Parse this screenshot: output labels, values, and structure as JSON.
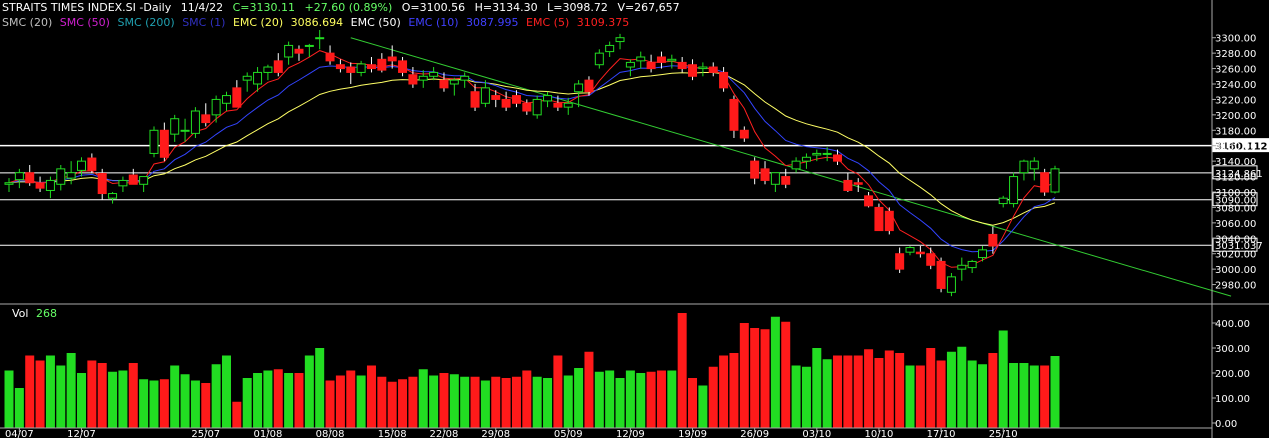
{
  "header": {
    "symbol": "STRAITS TIMES INDEX.SI -Daily",
    "date": "11/4/22",
    "close": "C=3130.11",
    "change": "+27.60 (0.89%)",
    "open": "O=3100.56",
    "high": "H=3134.30",
    "low": "L=3098.72",
    "volume": "V=267,657"
  },
  "indicators": [
    {
      "label": "SMC (20)",
      "color": "#bfbfbf"
    },
    {
      "label": "SMC (50)",
      "color": "#d020d0"
    },
    {
      "label": "SMC (200)",
      "color": "#20a0b0"
    },
    {
      "label": "SMC (1)",
      "color": "#3030c0"
    },
    {
      "label": "EMC (20)",
      "color": "#ffff60"
    },
    {
      "label": "3086.694",
      "color": "#ffff60"
    },
    {
      "label": "EMC (50)",
      "color": "#ffffff"
    },
    {
      "label": "EMC (10)",
      "color": "#4040ff"
    },
    {
      "label": "3087.995",
      "color": "#4040ff"
    },
    {
      "label": "EMC (5)",
      "color": "#ff2020"
    },
    {
      "label": "3109.375",
      "color": "#ff2020"
    }
  ],
  "colors": {
    "up": "#22dd22",
    "down": "#ff1a1a",
    "ema5": "#ff2020",
    "ema10": "#3344ff",
    "ema20": "#ffff66",
    "trendline": "#33cc33",
    "bg": "#000000"
  },
  "volume_panel": {
    "label": "Vol",
    "value": "268"
  },
  "chart_data": {
    "type": "candlestick",
    "price_axis": {
      "ticks": [
        2980,
        3000,
        3020,
        3040,
        3060,
        3080,
        3100,
        3120,
        3140,
        3160,
        3180,
        3200,
        3220,
        3240,
        3260,
        3280,
        3300
      ],
      "ylim": [
        2960,
        3310
      ]
    },
    "volume_axis": {
      "ticks": [
        "0.00",
        "100.00",
        "200.00",
        "300.00",
        "400.00"
      ],
      "ylim": [
        0,
        460
      ]
    },
    "x_labels": [
      "04/07",
      "12/07",
      "25/07",
      "01/08",
      "08/08",
      "15/08",
      "22/08",
      "29/08",
      "05/09",
      "12/09",
      "19/09",
      "26/09",
      "03/10",
      "10/10",
      "17/10",
      "25/10"
    ],
    "x_label_index": [
      1,
      7,
      19,
      25,
      31,
      37,
      42,
      47,
      54,
      60,
      66,
      72,
      78,
      84,
      90,
      96
    ],
    "levels": [
      {
        "value": 3160.112,
        "label": "3160.112",
        "style": "highlight"
      },
      {
        "value": 3124.861,
        "label": "3124.861",
        "style": "box"
      },
      {
        "value": 3090.0,
        "label": "3090.00",
        "style": "box"
      },
      {
        "value": 3031.037,
        "label": "3031.037",
        "style": "box"
      }
    ],
    "trendline": {
      "from": [
        33,
        3300
      ],
      "to": [
        118,
        2965
      ]
    },
    "candles": [
      [
        3110,
        3118,
        3100,
        3112,
        210
      ],
      [
        3116,
        3130,
        3105,
        3125,
        140
      ],
      [
        3125,
        3135,
        3108,
        3112,
        270
      ],
      [
        3112,
        3120,
        3100,
        3105,
        250
      ],
      [
        3102,
        3120,
        3092,
        3115,
        270
      ],
      [
        3110,
        3135,
        3102,
        3130,
        230
      ],
      [
        3118,
        3140,
        3110,
        3125,
        280
      ],
      [
        3128,
        3145,
        3120,
        3140,
        200
      ],
      [
        3144,
        3150,
        3125,
        3128,
        250
      ],
      [
        3124,
        3130,
        3090,
        3098,
        240
      ],
      [
        3092,
        3100,
        3085,
        3098,
        205
      ],
      [
        3108,
        3120,
        3100,
        3115,
        210
      ],
      [
        3122,
        3130,
        3110,
        3110,
        240
      ],
      [
        3110,
        3120,
        3100,
        3120,
        175
      ],
      [
        3150,
        3185,
        3145,
        3180,
        170
      ],
      [
        3180,
        3190,
        3140,
        3145,
        175
      ],
      [
        3175,
        3200,
        3165,
        3195,
        230
      ],
      [
        3180,
        3195,
        3165,
        3180,
        195
      ],
      [
        3176,
        3210,
        3170,
        3205,
        170
      ],
      [
        3200,
        3215,
        3185,
        3190,
        160
      ],
      [
        3200,
        3225,
        3190,
        3220,
        235
      ],
      [
        3215,
        3230,
        3205,
        3225,
        270
      ],
      [
        3235,
        3245,
        3210,
        3210,
        85
      ],
      [
        3245,
        3255,
        3230,
        3250,
        180
      ],
      [
        3240,
        3262,
        3230,
        3255,
        200
      ],
      [
        3255,
        3265,
        3245,
        3262,
        210
      ],
      [
        3270,
        3280,
        3250,
        3255,
        215
      ],
      [
        3275,
        3295,
        3265,
        3290,
        200
      ],
      [
        3285,
        3290,
        3270,
        3280,
        200
      ],
      [
        3290,
        3292,
        3275,
        3290,
        270
      ],
      [
        3300,
        3310,
        3285,
        3300,
        300
      ],
      [
        3280,
        3290,
        3265,
        3270,
        170
      ],
      [
        3265,
        3272,
        3255,
        3260,
        190
      ],
      [
        3262,
        3268,
        3240,
        3255,
        210
      ],
      [
        3255,
        3270,
        3250,
        3266,
        190
      ],
      [
        3265,
        3275,
        3255,
        3260,
        230
      ],
      [
        3272,
        3280,
        3255,
        3258,
        185
      ],
      [
        3275,
        3290,
        3260,
        3270,
        165
      ],
      [
        3270,
        3275,
        3250,
        3255,
        175
      ],
      [
        3252,
        3262,
        3235,
        3240,
        185
      ],
      [
        3245,
        3258,
        3235,
        3250,
        215
      ],
      [
        3250,
        3262,
        3245,
        3255,
        190
      ],
      [
        3245,
        3255,
        3230,
        3235,
        200
      ],
      [
        3240,
        3248,
        3225,
        3245,
        195
      ],
      [
        3245,
        3255,
        3235,
        3250,
        185
      ],
      [
        3230,
        3240,
        3205,
        3210,
        185
      ],
      [
        3215,
        3245,
        3210,
        3235,
        170
      ],
      [
        3225,
        3232,
        3210,
        3220,
        185
      ],
      [
        3220,
        3230,
        3205,
        3210,
        180
      ],
      [
        3225,
        3232,
        3210,
        3215,
        185
      ],
      [
        3215,
        3220,
        3200,
        3205,
        210
      ],
      [
        3200,
        3225,
        3195,
        3220,
        185
      ],
      [
        3218,
        3230,
        3210,
        3225,
        180
      ],
      [
        3215,
        3225,
        3205,
        3210,
        270
      ],
      [
        3210,
        3222,
        3200,
        3215,
        190
      ],
      [
        3230,
        3245,
        3210,
        3240,
        220
      ],
      [
        3245,
        3250,
        3225,
        3230,
        285
      ],
      [
        3265,
        3285,
        3260,
        3280,
        205
      ],
      [
        3282,
        3295,
        3275,
        3290,
        210
      ],
      [
        3295,
        3305,
        3285,
        3300,
        180
      ],
      [
        3262,
        3272,
        3250,
        3268,
        210
      ],
      [
        3270,
        3282,
        3260,
        3275,
        200
      ],
      [
        3268,
        3278,
        3255,
        3260,
        205
      ],
      [
        3275,
        3282,
        3260,
        3268,
        210
      ],
      [
        3270,
        3278,
        3260,
        3272,
        210
      ],
      [
        3268,
        3275,
        3255,
        3260,
        440
      ],
      [
        3265,
        3272,
        3245,
        3250,
        180
      ],
      [
        3260,
        3268,
        3250,
        3262,
        150
      ],
      [
        3262,
        3268,
        3250,
        3255,
        225
      ],
      [
        3255,
        3262,
        3230,
        3235,
        270
      ],
      [
        3220,
        3225,
        3170,
        3180,
        280
      ],
      [
        3180,
        3185,
        3165,
        3170,
        400
      ],
      [
        3140,
        3145,
        3110,
        3118,
        380
      ],
      [
        3130,
        3140,
        3110,
        3115,
        375
      ],
      [
        3110,
        3125,
        3100,
        3125,
        425
      ],
      [
        3120,
        3130,
        3105,
        3110,
        405
      ],
      [
        3130,
        3145,
        3125,
        3140,
        230
      ],
      [
        3140,
        3150,
        3130,
        3145,
        225
      ],
      [
        3148,
        3155,
        3140,
        3150,
        300
      ],
      [
        3150,
        3158,
        3140,
        3150,
        255
      ],
      [
        3148,
        3155,
        3135,
        3140,
        270
      ],
      [
        3115,
        3125,
        3100,
        3102,
        270
      ],
      [
        3112,
        3118,
        3100,
        3110,
        270
      ],
      [
        3095,
        3100,
        3080,
        3082,
        295
      ],
      [
        3080,
        3085,
        3050,
        3050,
        260
      ],
      [
        3075,
        3080,
        3045,
        3050,
        290
      ],
      [
        3020,
        3028,
        2995,
        3000,
        280
      ],
      [
        3022,
        3030,
        3018,
        3028,
        230
      ],
      [
        3022,
        3030,
        3015,
        3020,
        230
      ],
      [
        3020,
        3028,
        3000,
        3005,
        300
      ],
      [
        3010,
        3015,
        2970,
        2975,
        250
      ],
      [
        2970,
        2995,
        2965,
        2990,
        285
      ],
      [
        3000,
        3015,
        2985,
        3005,
        305
      ],
      [
        3002,
        3012,
        2995,
        3010,
        250
      ],
      [
        3015,
        3030,
        3010,
        3025,
        235
      ],
      [
        3045,
        3055,
        3020,
        3030,
        280
      ],
      [
        3085,
        3095,
        3080,
        3092,
        370
      ],
      [
        3085,
        3125,
        3080,
        3120,
        240
      ],
      [
        3125,
        3142,
        3115,
        3140,
        240
      ],
      [
        3130,
        3145,
        3115,
        3140,
        230
      ],
      [
        3125,
        3130,
        3095,
        3100,
        230
      ],
      [
        3100,
        3134,
        3098,
        3130,
        268
      ]
    ]
  }
}
